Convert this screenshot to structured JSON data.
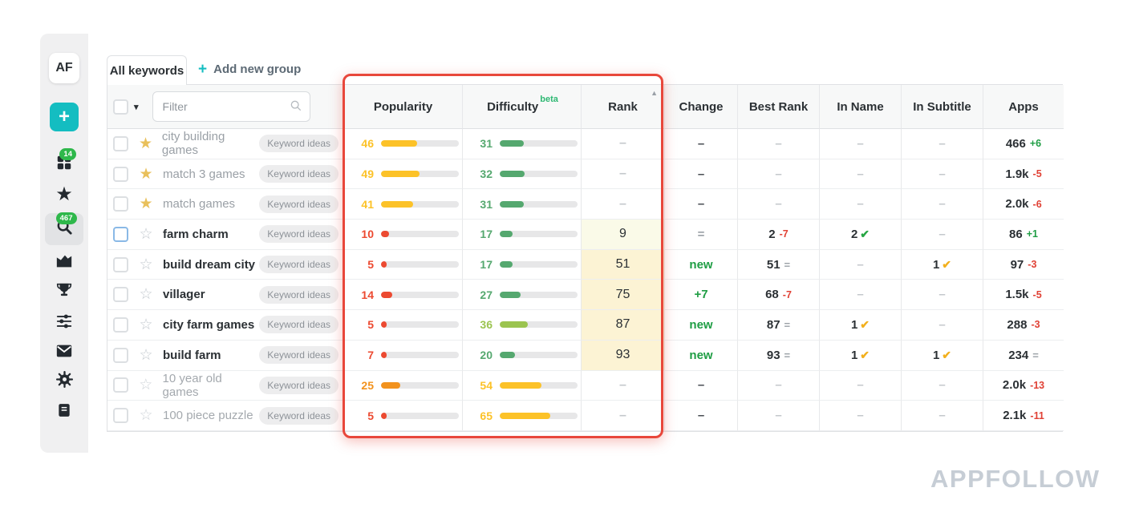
{
  "app": {
    "logo_text": "AF",
    "watermark": "APPFOLLOW"
  },
  "colors": {
    "accent_teal": "#14bdc1",
    "badge_green": "#2eb84b",
    "highlight_red": "#e8473b",
    "up_green": "#1f9d44",
    "down_red": "#e04135",
    "eq_gray": "#9aa0a6",
    "check_green": "#27a644",
    "check_yellow": "#f2b01e",
    "bar_yellow": "#fcc228",
    "bar_orange": "#f2921d",
    "bar_red": "#ec4a31",
    "bar_green": "#55a86f",
    "bar_lightgreen": "#9bc44f",
    "rank_bg_pale": "#fafae8",
    "rank_bg_yellow": "#fcf3d4"
  },
  "icons": {
    "plus": "+",
    "caret_down": "▾",
    "sort_asc": "▲",
    "star_filled": "★",
    "star_outline": "☆",
    "check": "✔",
    "dash": "–"
  },
  "sidebar": {
    "items": [
      {
        "name": "apps",
        "icon": "grid-icon",
        "badge": "14"
      },
      {
        "name": "favorites",
        "icon": "star-icon"
      },
      {
        "name": "keywords",
        "icon": "search-icon",
        "badge": "467",
        "active": true
      },
      {
        "name": "analytics",
        "icon": "chart-icon"
      },
      {
        "name": "top-charts",
        "icon": "trophy-icon"
      },
      {
        "name": "integrations",
        "icon": "sliders-icon"
      },
      {
        "name": "inbox",
        "icon": "envelope-icon"
      },
      {
        "name": "settings",
        "icon": "gear-icon"
      },
      {
        "name": "docs",
        "icon": "book-icon"
      }
    ]
  },
  "tabs": {
    "active": "All keywords",
    "add_group": "Add new group"
  },
  "filter_placeholder": "Filter",
  "table": {
    "columns": [
      "Popularity",
      "Difficulty",
      "Rank",
      "Change",
      "Best Rank",
      "In Name",
      "In Subtitle",
      "Apps"
    ],
    "beta": "beta",
    "badge_label": "Keyword ideas",
    "rows": [
      {
        "keyword": "city building games",
        "starred": true,
        "tone": "muted",
        "selected": false,
        "pop": {
          "v": 46,
          "c": "#fcc228"
        },
        "diff": {
          "v": 31,
          "c": "#55a86f"
        },
        "rank": {
          "t": "–",
          "bg": "none"
        },
        "change": {
          "t": "–",
          "s": "dash"
        },
        "best": {
          "v": "–"
        },
        "in_name": {
          "v": "–"
        },
        "in_sub": {
          "v": "–"
        },
        "apps": {
          "v": "466",
          "d": "+6",
          "ds": "up"
        }
      },
      {
        "keyword": "match 3 games",
        "starred": true,
        "tone": "muted",
        "selected": false,
        "pop": {
          "v": 49,
          "c": "#fcc228"
        },
        "diff": {
          "v": 32,
          "c": "#55a86f"
        },
        "rank": {
          "t": "–",
          "bg": "none"
        },
        "change": {
          "t": "–",
          "s": "dash"
        },
        "best": {
          "v": "–"
        },
        "in_name": {
          "v": "–"
        },
        "in_sub": {
          "v": "–"
        },
        "apps": {
          "v": "1.9k",
          "d": "-5",
          "ds": "down"
        }
      },
      {
        "keyword": "match games",
        "starred": true,
        "tone": "muted",
        "selected": false,
        "pop": {
          "v": 41,
          "c": "#fcc228"
        },
        "diff": {
          "v": 31,
          "c": "#55a86f"
        },
        "rank": {
          "t": "–",
          "bg": "none"
        },
        "change": {
          "t": "–",
          "s": "dash"
        },
        "best": {
          "v": "–"
        },
        "in_name": {
          "v": "–"
        },
        "in_sub": {
          "v": "–"
        },
        "apps": {
          "v": "2.0k",
          "d": "-6",
          "ds": "down"
        }
      },
      {
        "keyword": "farm charm",
        "starred": false,
        "tone": "strong",
        "selected": true,
        "pop": {
          "v": 10,
          "c": "#ec4a31"
        },
        "diff": {
          "v": 17,
          "c": "#55a86f"
        },
        "rank": {
          "t": "9",
          "bg": "pale"
        },
        "change": {
          "t": "=",
          "s": "eq"
        },
        "best": {
          "v": "2",
          "d": "-7",
          "ds": "down"
        },
        "in_name": {
          "v": "2",
          "check": "green"
        },
        "in_sub": {
          "v": "–"
        },
        "apps": {
          "v": "86",
          "d": "+1",
          "ds": "up"
        }
      },
      {
        "keyword": "build dream city",
        "starred": false,
        "tone": "strong",
        "selected": false,
        "pop": {
          "v": 5,
          "c": "#ec4a31"
        },
        "diff": {
          "v": 17,
          "c": "#55a86f"
        },
        "rank": {
          "t": "51",
          "bg": "yellow"
        },
        "change": {
          "t": "new",
          "s": "up"
        },
        "best": {
          "v": "51",
          "d": "=",
          "ds": "eq"
        },
        "in_name": {
          "v": "–"
        },
        "in_sub": {
          "v": "1",
          "check": "yellow"
        },
        "apps": {
          "v": "97",
          "d": "-3",
          "ds": "down"
        }
      },
      {
        "keyword": "villager",
        "starred": false,
        "tone": "strong",
        "selected": false,
        "pop": {
          "v": 14,
          "c": "#ec4a31"
        },
        "diff": {
          "v": 27,
          "c": "#55a86f"
        },
        "rank": {
          "t": "75",
          "bg": "yellow"
        },
        "change": {
          "t": "+7",
          "s": "up"
        },
        "best": {
          "v": "68",
          "d": "-7",
          "ds": "down"
        },
        "in_name": {
          "v": "–"
        },
        "in_sub": {
          "v": "–"
        },
        "apps": {
          "v": "1.5k",
          "d": "-5",
          "ds": "down"
        }
      },
      {
        "keyword": "city farm games",
        "starred": false,
        "tone": "strong",
        "selected": false,
        "pop": {
          "v": 5,
          "c": "#ec4a31"
        },
        "diff": {
          "v": 36,
          "c": "#9bc44f"
        },
        "rank": {
          "t": "87",
          "bg": "yellow"
        },
        "change": {
          "t": "new",
          "s": "up"
        },
        "best": {
          "v": "87",
          "d": "=",
          "ds": "eq"
        },
        "in_name": {
          "v": "1",
          "check": "yellow"
        },
        "in_sub": {
          "v": "–"
        },
        "apps": {
          "v": "288",
          "d": "-3",
          "ds": "down"
        }
      },
      {
        "keyword": "build farm",
        "starred": false,
        "tone": "strong",
        "selected": false,
        "pop": {
          "v": 7,
          "c": "#ec4a31"
        },
        "diff": {
          "v": 20,
          "c": "#55a86f"
        },
        "rank": {
          "t": "93",
          "bg": "yellow"
        },
        "change": {
          "t": "new",
          "s": "up"
        },
        "best": {
          "v": "93",
          "d": "=",
          "ds": "eq"
        },
        "in_name": {
          "v": "1",
          "check": "yellow"
        },
        "in_sub": {
          "v": "1",
          "check": "yellow"
        },
        "apps": {
          "v": "234",
          "d": "=",
          "ds": "eq"
        }
      },
      {
        "keyword": "10 year old games",
        "starred": false,
        "tone": "faded",
        "selected": false,
        "pop": {
          "v": 25,
          "c": "#f2921d"
        },
        "diff": {
          "v": 54,
          "c": "#fcc228"
        },
        "rank": {
          "t": "–",
          "bg": "none"
        },
        "change": {
          "t": "–",
          "s": "dash"
        },
        "best": {
          "v": "–"
        },
        "in_name": {
          "v": "–"
        },
        "in_sub": {
          "v": "–"
        },
        "apps": {
          "v": "2.0k",
          "d": "-13",
          "ds": "down"
        }
      },
      {
        "keyword": "100 piece puzzle",
        "starred": false,
        "tone": "faded",
        "selected": false,
        "pop": {
          "v": 5,
          "c": "#ec4a31"
        },
        "diff": {
          "v": 65,
          "c": "#fcc228"
        },
        "rank": {
          "t": "–",
          "bg": "none"
        },
        "change": {
          "t": "–",
          "s": "dash"
        },
        "best": {
          "v": "–"
        },
        "in_name": {
          "v": "–"
        },
        "in_sub": {
          "v": "–"
        },
        "apps": {
          "v": "2.1k",
          "d": "-11",
          "ds": "down"
        }
      }
    ]
  }
}
